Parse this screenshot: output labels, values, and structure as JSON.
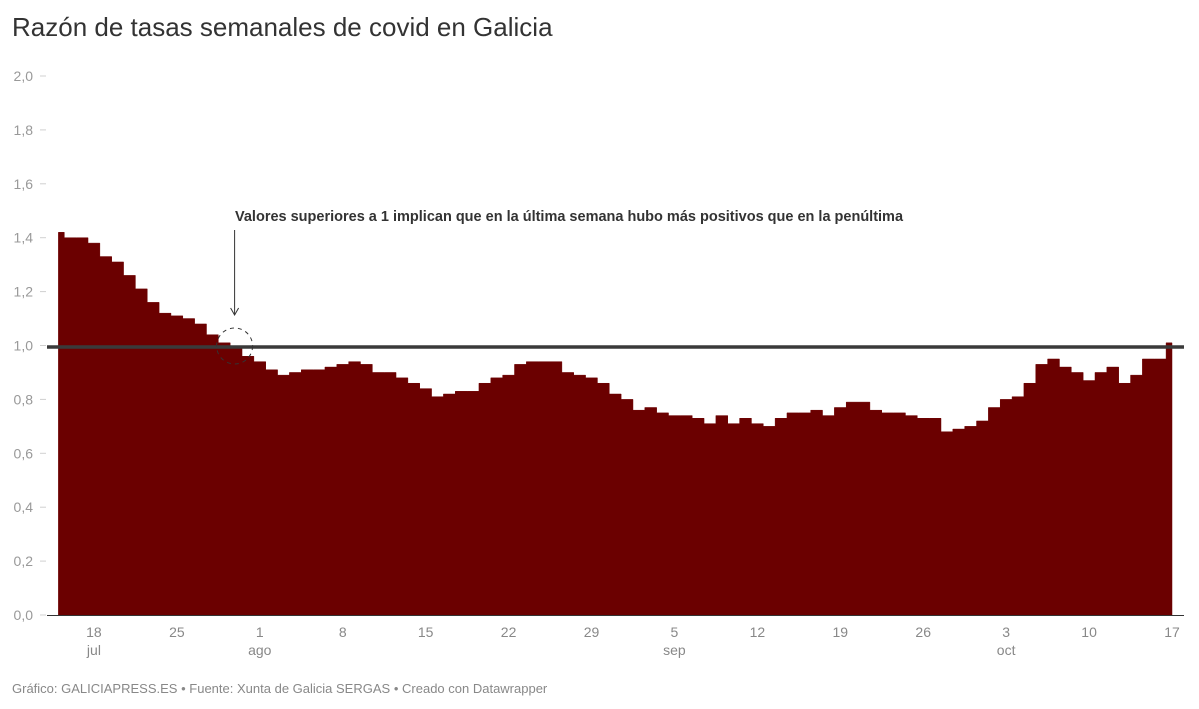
{
  "header": {
    "title": "Razón de tasas semanales de covid en Galicia"
  },
  "footer": {
    "grafico_label": "Gráfico:",
    "grafico_value": "GALICIAPRESS.ES",
    "separator": "•",
    "fuente_label": "Fuente:",
    "fuente_value": "Xunta de Galicia SERGAS",
    "creado": "Creado con Datawrapper"
  },
  "colors": {
    "bar_fill": "#6b0000",
    "reference_line": "#3a3a3a",
    "axis_text": "#999999",
    "title": "#333333",
    "footer": "#888888"
  },
  "chart_data": {
    "type": "area",
    "title": "Razón de tasas semanales de covid en Galicia",
    "xlabel": "",
    "ylabel": "",
    "ylim": [
      0,
      2.0
    ],
    "yticks": [
      "0,0",
      "0,2",
      "0,4",
      "0,6",
      "0,8",
      "1,0",
      "1,2",
      "1,4",
      "1,6",
      "1,8",
      "2,0"
    ],
    "ytick_values": [
      0,
      0.2,
      0.4,
      0.6,
      0.8,
      1.0,
      1.2,
      1.4,
      1.6,
      1.8,
      2.0
    ],
    "xticks": [
      {
        "day": "18",
        "month": "jul",
        "index": 3
      },
      {
        "day": "25",
        "month": "",
        "index": 10
      },
      {
        "day": "1",
        "month": "ago",
        "index": 17
      },
      {
        "day": "8",
        "month": "",
        "index": 24
      },
      {
        "day": "15",
        "month": "",
        "index": 31
      },
      {
        "day": "22",
        "month": "",
        "index": 38
      },
      {
        "day": "29",
        "month": "",
        "index": 45
      },
      {
        "day": "5",
        "month": "sep",
        "index": 52
      },
      {
        "day": "12",
        "month": "",
        "index": 59
      },
      {
        "day": "19",
        "month": "",
        "index": 66
      },
      {
        "day": "26",
        "month": "",
        "index": 73
      },
      {
        "day": "3",
        "month": "oct",
        "index": 80
      },
      {
        "day": "10",
        "month": "",
        "index": 87
      },
      {
        "day": "17",
        "month": "",
        "index": 94
      }
    ],
    "grid": false,
    "reference_line": {
      "value": 1.0
    },
    "annotation": {
      "text": "Valores superiores a 1 implican que en la última semana hubo más positivos que en la penúltima",
      "target_index": 15
    },
    "x": [
      "15 jul",
      "16 jul",
      "17 jul",
      "18 jul",
      "19 jul",
      "20 jul",
      "21 jul",
      "22 jul",
      "23 jul",
      "24 jul",
      "25 jul",
      "26 jul",
      "27 jul",
      "28 jul",
      "29 jul",
      "30 jul",
      "31 jul",
      "1 ago",
      "2 ago",
      "3 ago",
      "4 ago",
      "5 ago",
      "6 ago",
      "7 ago",
      "8 ago",
      "9 ago",
      "10 ago",
      "11 ago",
      "12 ago",
      "13 ago",
      "14 ago",
      "15 ago",
      "16 ago",
      "17 ago",
      "18 ago",
      "19 ago",
      "20 ago",
      "21 ago",
      "22 ago",
      "23 ago",
      "24 ago",
      "25 ago",
      "26 ago",
      "27 ago",
      "28 ago",
      "29 ago",
      "30 ago",
      "31 ago",
      "1 sep",
      "2 sep",
      "3 sep",
      "4 sep",
      "5 sep",
      "6 sep",
      "7 sep",
      "8 sep",
      "9 sep",
      "10 sep",
      "11 sep",
      "12 sep",
      "13 sep",
      "14 sep",
      "15 sep",
      "16 sep",
      "17 sep",
      "18 sep",
      "19 sep",
      "20 sep",
      "21 sep",
      "22 sep",
      "23 sep",
      "24 sep",
      "25 sep",
      "26 sep",
      "27 sep",
      "28 sep",
      "29 sep",
      "30 sep",
      "1 oct",
      "2 oct",
      "3 oct",
      "4 oct",
      "5 oct",
      "6 oct",
      "7 oct",
      "8 oct",
      "9 oct",
      "10 oct",
      "11 oct",
      "12 oct",
      "13 oct",
      "14 oct",
      "15 oct",
      "16 oct",
      "17 oct"
    ],
    "series": [
      {
        "name": "Razón de tasas semanales",
        "values": [
          1.42,
          1.4,
          1.4,
          1.38,
          1.33,
          1.31,
          1.26,
          1.21,
          1.16,
          1.12,
          1.11,
          1.1,
          1.08,
          1.04,
          1.01,
          0.99,
          0.96,
          0.94,
          0.91,
          0.89,
          0.9,
          0.91,
          0.91,
          0.92,
          0.93,
          0.94,
          0.93,
          0.9,
          0.9,
          0.88,
          0.86,
          0.84,
          0.81,
          0.82,
          0.83,
          0.83,
          0.86,
          0.88,
          0.89,
          0.93,
          0.94,
          0.94,
          0.94,
          0.9,
          0.89,
          0.88,
          0.86,
          0.82,
          0.8,
          0.76,
          0.77,
          0.75,
          0.74,
          0.74,
          0.73,
          0.71,
          0.74,
          0.71,
          0.73,
          0.71,
          0.7,
          0.73,
          0.75,
          0.75,
          0.76,
          0.74,
          0.77,
          0.79,
          0.79,
          0.76,
          0.75,
          0.75,
          0.74,
          0.73,
          0.73,
          0.68,
          0.69,
          0.7,
          0.72,
          0.77,
          0.8,
          0.81,
          0.86,
          0.93,
          0.95,
          0.92,
          0.9,
          0.87,
          0.9,
          0.92,
          0.86,
          0.89,
          0.95,
          0.95,
          1.01
        ]
      }
    ]
  }
}
